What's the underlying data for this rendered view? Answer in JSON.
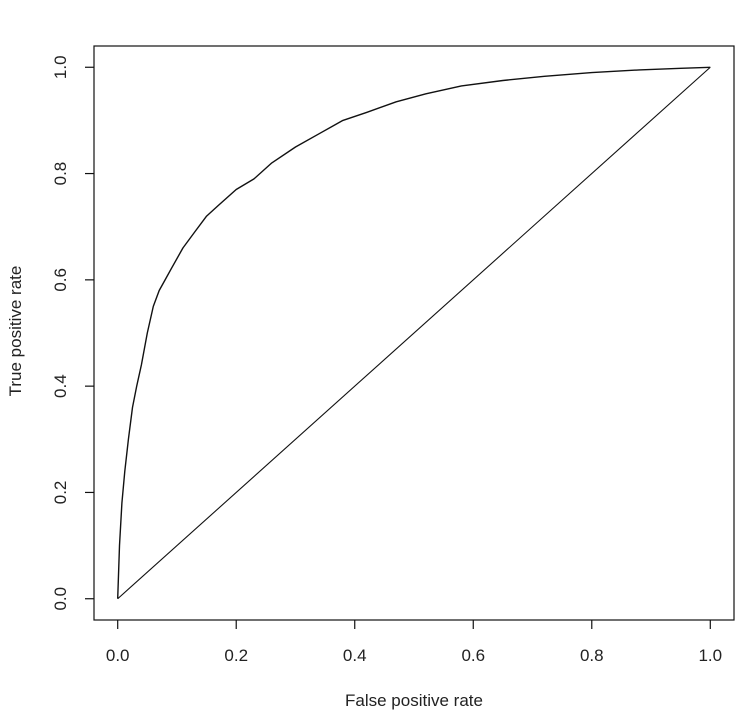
{
  "chart_data": {
    "type": "line",
    "title": "",
    "xlabel": "False positive rate",
    "ylabel": "True positive rate",
    "xlim": [
      -0.04,
      1.04
    ],
    "ylim": [
      -0.04,
      1.04
    ],
    "x_ticks": [
      "0.0",
      "0.2",
      "0.4",
      "0.6",
      "0.8",
      "1.0"
    ],
    "y_ticks": [
      "0.0",
      "0.2",
      "0.4",
      "0.6",
      "0.8",
      "1.0"
    ],
    "grid": false,
    "legend": "none",
    "series": [
      {
        "x": [
          0.0,
          0.003,
          0.007,
          0.012,
          0.018,
          0.025,
          0.032,
          0.04,
          0.05,
          0.06,
          0.07,
          0.08,
          0.09,
          0.11,
          0.13,
          0.15,
          0.17,
          0.2,
          0.23,
          0.26,
          0.3,
          0.34,
          0.38,
          0.42,
          0.47,
          0.52,
          0.58,
          0.65,
          0.72,
          0.8,
          0.88,
          0.95,
          1.0
        ],
        "y": [
          0.0,
          0.1,
          0.18,
          0.24,
          0.3,
          0.36,
          0.4,
          0.44,
          0.5,
          0.55,
          0.58,
          0.6,
          0.62,
          0.66,
          0.69,
          0.72,
          0.74,
          0.77,
          0.79,
          0.82,
          0.85,
          0.875,
          0.9,
          0.915,
          0.935,
          0.95,
          0.965,
          0.975,
          0.983,
          0.99,
          0.995,
          0.998,
          1.0
        ]
      },
      {
        "x": [
          0.0,
          1.0
        ],
        "y": [
          0.0,
          1.0
        ]
      }
    ]
  }
}
